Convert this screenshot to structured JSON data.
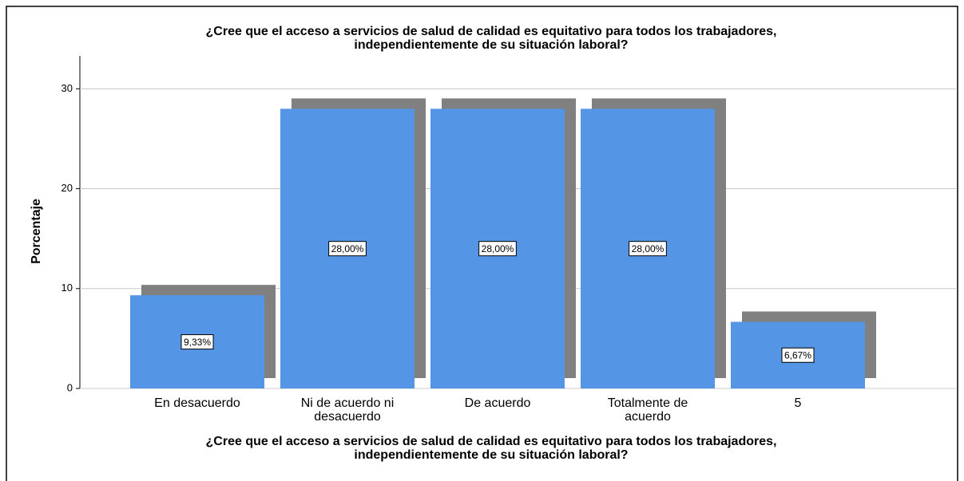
{
  "chart_data": {
    "type": "bar",
    "title": [
      "¿Cree que el acceso a servicios de salud de calidad es equitativo para todos los trabajadores,",
      "independientemente de su situación laboral?"
    ],
    "x_label": [
      "¿Cree que el acceso a servicios de salud de calidad es equitativo para todos los trabajadores,",
      "independientemente de su situación laboral?"
    ],
    "y_label": "Porcentaje",
    "categories": [
      [
        "En desacuerdo"
      ],
      [
        "Ni de acuerdo ni",
        "desacuerdo"
      ],
      [
        "De acuerdo"
      ],
      [
        "Totalmente de",
        "acuerdo"
      ],
      [
        "5"
      ]
    ],
    "values": [
      9.33,
      28,
      28,
      28,
      6.67
    ],
    "value_labels": [
      "9,33%",
      "28,00%",
      "28,00%",
      "28,00%",
      "6,67%"
    ],
    "color": "#5595e6",
    "shadow_color": "#808080",
    "ylim": [
      0,
      33.3
    ],
    "yticks": [
      0,
      10,
      20,
      30
    ],
    "grid": true
  }
}
